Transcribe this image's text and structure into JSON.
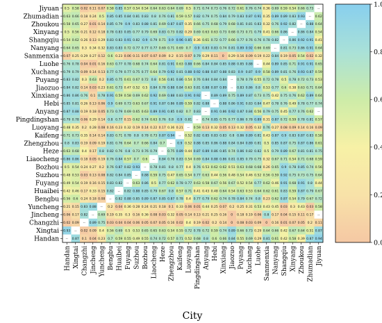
{
  "chart_data": {
    "type": "heatmap",
    "xlabel": "City",
    "ylabel": "",
    "cities_rows": [
      "Jiyuan",
      "Zhumadian",
      "Zhoukou",
      "Xinyang",
      "Shangqiu",
      "Nanyang",
      "Sanmenxia",
      "Luohe",
      "Xuchang",
      "Puyang",
      "Jiaozuo",
      "Xinxiang",
      "Hebi",
      "Anyang",
      "Pingdingshan",
      "Luoyang",
      "Kaifeng",
      "Zhengzhou",
      "Heze",
      "Liaocheng",
      "Bozhou",
      "Suzhou",
      "Fuyang",
      "Huaibei",
      "Bengbu",
      "Yuncheng",
      "Jincheng",
      "Changzhi",
      "Xingtai",
      "Handan"
    ],
    "cities_cols": [
      "Handan",
      "Xingtai",
      "Changzhi",
      "Jincheng",
      "Yuncheng",
      "Bengbu",
      "Huaibei",
      "Fuyang",
      "Suzhou",
      "Bozhou",
      "Liaocheng",
      "Heze",
      "Zhengzhou",
      "Kaifeng",
      "Luoyang",
      "Pingdingshan",
      "Anyang",
      "Hebi",
      "Xinxiang",
      "Jiaozuo",
      "Puyang",
      "Xuchang",
      "Luohe",
      "Sanmenxia",
      "Nanyang",
      "Shangqiu",
      "Xinyang",
      "Zhoukou",
      "Zhumadian",
      "Jiyuan"
    ],
    "diagonal_label": "--",
    "value_range": [
      0,
      1
    ],
    "colorbar": {
      "ticks": [
        "0.000",
        "0.2000",
        "0.4000",
        "0.6000",
        "0.8000",
        "1.000"
      ],
      "tick_values": [
        0,
        0.2,
        0.4,
        0.6,
        0.8,
        1.0
      ],
      "colors": [
        "#f5c8a4",
        "#f8e2a8",
        "#f7f1a6",
        "#cdeca8",
        "#a9e1d8",
        "#88cfee"
      ]
    },
    "row_values": [
      [
        0.5,
        0.58,
        0.02,
        0.11,
        0.07,
        0.58,
        0.85,
        0.57,
        0.54,
        0.54,
        0.64,
        0.63,
        0.64,
        0.69,
        0.5,
        0.71,
        0.74,
        0.73,
        0.76,
        0.72,
        0.61,
        0.76,
        0.74,
        0.36,
        0.69,
        0.59,
        0.54,
        0.66,
        0.73,
        null
      ],
      [
        0.63,
        0.66,
        0.18,
        0.24,
        0.5,
        0.85,
        0.85,
        0.84,
        0.81,
        0.83,
        0.8,
        0.76,
        0.81,
        0.59,
        0.57,
        0.82,
        0.79,
        0.75,
        0.84,
        0.79,
        0.83,
        0.87,
        0.91,
        0.35,
        0.89,
        0.89,
        0.83,
        0.93,
        null,
        0.62
      ],
      [
        0.58,
        0.65,
        0.27,
        0.01,
        0.14,
        0.85,
        0.79,
        0.9,
        0.83,
        0.88,
        0.81,
        0.69,
        0.87,
        0.87,
        0.35,
        0.66,
        0.75,
        0.68,
        0.79,
        0.68,
        0.81,
        0.81,
        0.83,
        0.32,
        0.76,
        0.92,
        0.82,
        null,
        0.88,
        0.64
      ],
      [
        0.5,
        0.56,
        0.21,
        0.12,
        0.18,
        0.78,
        0.83,
        0.85,
        0.77,
        0.79,
        0.69,
        0.83,
        0.73,
        0.82,
        0.29,
        0.69,
        0.63,
        0.63,
        0.73,
        0.68,
        0.73,
        0.71,
        0.79,
        0.41,
        0.66,
        0.86,
        null,
        0.86,
        0.84,
        0.54
      ],
      [
        0.54,
        0.62,
        0.26,
        0.13,
        0.29,
        0.83,
        0.83,
        0.91,
        0.82,
        0.9,
        0.79,
        0.71,
        0.9,
        0.96,
        0.85,
        0.36,
        0.61,
        0.72,
        0.77,
        0.66,
        0.77,
        0.76,
        0.76,
        0.78,
        0.82,
        null,
        0.86,
        0.92,
        0.91,
        0.41
      ],
      [
        0.64,
        0.65,
        0.3,
        0.34,
        0.32,
        0.83,
        0.83,
        0.72,
        0.77,
        0.77,
        0.77,
        0.69,
        0.71,
        0.69,
        0.7,
        0.9,
        0.83,
        0.83,
        0.74,
        0.81,
        0.89,
        0.92,
        0.66,
        0.69,
        null,
        0.81,
        0.73,
        0.86,
        0.91,
        0.64
      ],
      [
        0.07,
        0.25,
        0.29,
        0.27,
        0.12,
        0.6,
        0.23,
        0.06,
        0.11,
        0.07,
        0.07,
        0.09,
        0.2,
        0.15,
        0.07,
        0.79,
        0.29,
        0.11,
        0.0,
        0.29,
        0.16,
        0.09,
        0.19,
        0.22,
        0.84,
        0.19,
        0.05,
        0.54,
        0.02,
        0.32
      ],
      [
        0.76,
        0.78,
        0.04,
        0.01,
        0.16,
        0.63,
        0.77,
        0.78,
        0.68,
        0.74,
        0.64,
        0.81,
        0.91,
        0.63,
        0.88,
        0.66,
        0.84,
        0.84,
        0.85,
        0.88,
        0.85,
        0.88,
        null,
        0.44,
        0.89,
        0.85,
        0.71,
        0.91,
        0.91,
        0.65
      ],
      [
        0.79,
        0.79,
        0.09,
        0.14,
        0.13,
        0.77,
        0.79,
        0.77,
        0.75,
        0.77,
        0.64,
        0.79,
        0.92,
        0.81,
        0.88,
        0.92,
        0.88,
        0.87,
        0.88,
        0.83,
        0.9,
        0.87,
        0.9,
        0.58,
        0.89,
        0.81,
        0.76,
        0.93,
        0.87,
        0.59
      ],
      [
        0.83,
        0.82,
        0.3,
        0.63,
        0.2,
        0.85,
        0.75,
        0.61,
        0.67,
        0.72,
        0.8,
        0.56,
        0.81,
        0.86,
        0.54,
        0.76,
        0.84,
        0.84,
        0.84,
        null,
        0.78,
        0.79,
        0.55,
        0.72,
        0.78,
        0.5,
        0.78,
        0.72,
        0.73,
        0.53
      ],
      [
        0.84,
        0.82,
        0.14,
        0.03,
        0.23,
        0.61,
        0.73,
        0.47,
        0.52,
        0.5,
        0.84,
        0.78,
        0.88,
        0.84,
        0.63,
        0.81,
        0.88,
        0.87,
        0.89,
        null,
        0.83,
        0.86,
        0.8,
        0.53,
        0.77,
        0.6,
        0.38,
        0.63,
        0.71,
        0.64
      ],
      [
        0.86,
        0.86,
        0.76,
        0.1,
        0.78,
        0.91,
        0.59,
        0.58,
        0.69,
        0.62,
        0.92,
        0.69,
        0.88,
        0.83,
        0.91,
        0.92,
        null,
        0.89,
        0.89,
        0.75,
        0.89,
        0.87,
        0.73,
        0.75,
        0.42,
        0.75,
        0.76,
        0.62,
        0.89,
        0.64
      ],
      [
        0.85,
        0.81,
        0.26,
        0.13,
        0.06,
        0.9,
        0.69,
        0.73,
        0.63,
        0.67,
        0.91,
        0.87,
        0.86,
        0.89,
        0.59,
        0.82,
        0.88,
        null,
        0.88,
        0.86,
        0.91,
        0.83,
        0.84,
        0.47,
        0.78,
        0.76,
        0.49,
        0.78,
        0.77,
        0.74
      ],
      [
        0.87,
        0.88,
        0.19,
        0.18,
        0.05,
        0.73,
        0.79,
        0.69,
        0.65,
        0.63,
        0.89,
        0.91,
        0.85,
        0.82,
        0.7,
        0.83,
        null,
        0.91,
        0.86,
        0.92,
        0.87,
        0.84,
        0.56,
        0.79,
        0.75,
        0.45,
        0.77,
        0.76,
        0.62,
        null
      ],
      [
        0.79,
        0.78,
        0.06,
        0.29,
        0.14,
        0.8,
        0.77,
        0.15,
        0.62,
        0.74,
        0.63,
        0.76,
        0.8,
        0.9,
        0.81,
        null,
        0.74,
        0.85,
        0.75,
        0.77,
        0.86,
        0.78,
        0.89,
        0.31,
        0.87,
        0.72,
        0.59,
        0.78,
        0.81,
        0.57
      ],
      [
        0.48,
        0.35,
        0.2,
        0.28,
        0.08,
        0.16,
        0.23,
        0.32,
        0.19,
        0.14,
        0.22,
        0.17,
        0.36,
        0.21,
        null,
        0.59,
        0.13,
        0.32,
        0.05,
        0.13,
        0.32,
        0.05,
        0.32,
        0.76,
        0.27,
        0.08,
        0.09,
        0.14,
        0.16,
        0.09
      ],
      [
        0.71,
        0.73,
        0.35,
        0.14,
        0.14,
        0.83,
        0.71,
        0.78,
        0.8,
        0.78,
        0.73,
        0.87,
        0.94,
        null,
        0.52,
        0.82,
        0.85,
        0.83,
        0.83,
        0.8,
        0.86,
        0.89,
        0.81,
        0.43,
        0.87,
        0.9,
        0.83,
        0.87,
        0.83,
        0.58
      ],
      [
        0.8,
        0.83,
        0.19,
        0.09,
        0.19,
        0.81,
        0.76,
        0.64,
        0.7,
        0.66,
        0.84,
        0.7,
        null,
        0.9,
        0.52,
        0.88,
        0.85,
        0.86,
        0.88,
        0.84,
        0.84,
        0.89,
        0.81,
        0.5,
        0.85,
        0.87,
        0.75,
        0.87,
        0.86,
        0.61
      ],
      [
        0.63,
        0.68,
        0.4,
        0.17,
        0.8,
        0.82,
        0.76,
        0.8,
        0.73,
        0.76,
        0.79,
        null,
        0.75,
        0.89,
        0.44,
        0.87,
        0.89,
        0.86,
        0.85,
        0.74,
        0.86,
        0.82,
        0.82,
        0.5,
        0.79,
        0.89,
        0.67,
        0.81,
        0.81,
        0.75
      ],
      [
        0.86,
        0.86,
        0.18,
        0.05,
        0.19,
        0.76,
        0.84,
        0.57,
        0.7,
        0.6,
        null,
        0.84,
        0.78,
        0.83,
        0.54,
        0.69,
        0.84,
        0.88,
        0.86,
        0.81,
        0.85,
        0.79,
        0.75,
        0.32,
        0.67,
        0.71,
        0.54,
        0.71,
        0.68,
        0.59
      ],
      [
        0.5,
        0.54,
        0.24,
        0.27,
        0.2,
        0.76,
        0.87,
        0.82,
        0.93,
        null,
        0.78,
        0.81,
        0.8,
        0.77,
        0.4,
        0.76,
        0.53,
        0.62,
        0.62,
        0.51,
        0.63,
        0.68,
        0.68,
        0.26,
        0.65,
        0.9,
        0.78,
        0.85,
        0.74,
        0.56
      ],
      [
        0.48,
        0.53,
        0.03,
        0.13,
        0.08,
        0.82,
        0.84,
        0.85,
        null,
        0.88,
        0.59,
        0.75,
        0.47,
        0.65,
        0.54,
        0.77,
        0.63,
        0.44,
        0.56,
        0.48,
        0.54,
        0.46,
        0.52,
        0.56,
        0.59,
        0.92,
        0.75,
        0.73,
        0.75,
        0.64
      ],
      [
        0.49,
        0.54,
        0.19,
        0.16,
        0.15,
        0.83,
        0.82,
        null,
        0.63,
        0.86,
        0.5,
        0.77,
        0.62,
        0.78,
        0.77,
        0.63,
        0.58,
        0.67,
        0.56,
        0.67,
        0.52,
        0.54,
        0.77,
        0.62,
        0.46,
        0.91,
        0.68,
        0.91,
        0.8,
        0.44
      ],
      [
        0.42,
        0.46,
        0.17,
        0.33,
        0.15,
        0.82,
        null,
        0.82,
        0.88,
        0.85,
        0.79,
        0.67,
        0.8,
        0.57,
        0.71,
        0.41,
        0.43,
        0.48,
        0.64,
        0.54,
        0.63,
        0.53,
        0.64,
        0.62,
        0.61,
        0.83,
        0.59,
        0.87,
        0.79,
        0.67
      ],
      [
        0.56,
        0.6,
        0.24,
        0.18,
        0.08,
        null,
        0.82,
        0.88,
        0.85,
        0.89,
        0.87,
        0.85,
        0.87,
        0.78,
        0.4,
        0.77,
        0.79,
        0.62,
        0.74,
        0.78,
        0.84,
        0.74,
        0.8,
        0.23,
        0.62,
        0.87,
        0.54,
        0.79,
        0.67,
        0.72
      ],
      [
        0.21,
        0.15,
        0.83,
        0.88,
        null,
        0.2,
        0.04,
        0.36,
        0.28,
        0.24,
        0.21,
        0.18,
        0.1,
        0.33,
        0.06,
        0.01,
        0.44,
        0.25,
        0.07,
        0.2,
        0.25,
        0.31,
        0.53,
        0.43,
        0.45,
        0.03,
        0.3,
        0.43,
        0.03,
        0.58
      ],
      [
        0.06,
        0.17,
        0.82,
        null,
        0.69,
        0.19,
        0.35,
        0.3,
        0.16,
        0.36,
        0.08,
        0.03,
        0.32,
        0.05,
        0.14,
        0.13,
        0.21,
        0.25,
        0.16,
        0.0,
        0.18,
        0.19,
        0.06,
        0.8,
        0.17,
        0.04,
        0.15,
        0.11,
        0.17,
        null
      ],
      [
        0.02,
        0.09,
        null,
        0.89,
        0.75,
        0.03,
        0.04,
        0.04,
        0.06,
        0.05,
        0.07,
        0.05,
        0.16,
        0.02,
        0.4,
        0.19,
        0.02,
        0.2,
        0.14,
        0.0,
        0.08,
        0.03,
        0.09,
        0.0,
        0.16,
        0.01,
        0.07,
        0.05,
        0.2,
        0.11
      ],
      [
        0.93,
        null,
        0.02,
        0.09,
        0.4,
        0.56,
        0.69,
        0.5,
        0.53,
        0.65,
        0.65,
        0.63,
        0.54,
        0.55,
        0.72,
        0.78,
        0.72,
        0.59,
        0.74,
        0.89,
        0.66,
        0.73,
        0.29,
        0.64,
        0.66,
        0.42,
        0.67,
        0.64,
        0.51,
        0.87
      ],
      [
        null,
        0.87,
        0.1,
        0.04,
        0.23,
        0.7,
        0.59,
        0.55,
        0.49,
        0.55,
        0.74,
        0.72,
        0.57,
        0.71,
        0.52,
        0.68,
        0.8,
        0.6,
        0.66,
        0.84,
        0.55,
        0.69,
        0.29,
        0.81,
        0.61,
        0.42,
        0.58,
        0.39,
        0.87,
        0.94
      ]
    ]
  }
}
